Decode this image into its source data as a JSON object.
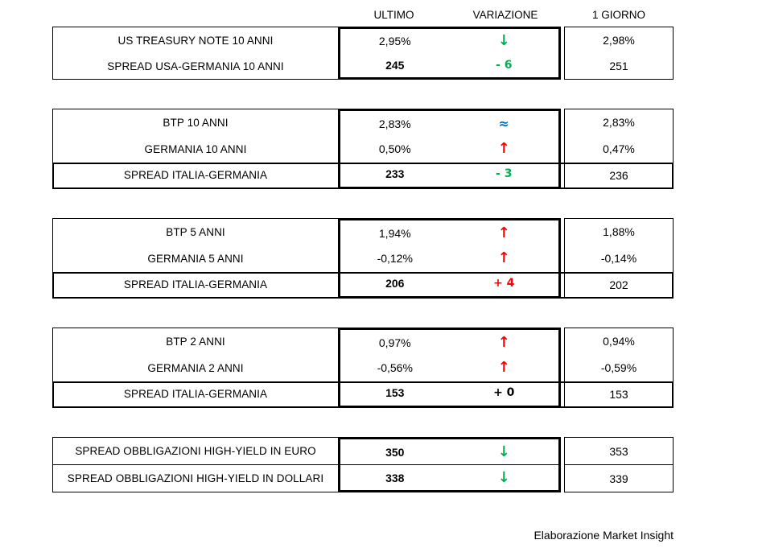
{
  "header": {
    "columns": [
      "ULTIMO",
      "VARIAZIONE",
      "1 GIORNO"
    ]
  },
  "colors": {
    "green": "#00B050",
    "red": "#FF0000",
    "blue": "#0070C0",
    "black": "#000000"
  },
  "tables": [
    {
      "spread_last_row": false,
      "divider_between_rows": false,
      "rows": [
        {
          "label": "US TREASURY NOTE 10 ANNI",
          "ultimo": {
            "text": "2,95%",
            "bold": false
          },
          "variazione": {
            "text": "↓",
            "kind": "arrow",
            "color": "green"
          },
          "giorno": "2,98%"
        },
        {
          "label": "SPREAD USA-GERMANIA 10 ANNI",
          "ultimo": {
            "text": "245",
            "bold": true
          },
          "variazione": {
            "text": "- 6",
            "kind": "delta",
            "color": "green"
          },
          "giorno": "251"
        }
      ]
    },
    {
      "spread_last_row": true,
      "divider_between_rows": false,
      "rows": [
        {
          "label": "BTP 10 ANNI",
          "ultimo": {
            "text": "2,83%",
            "bold": false
          },
          "variazione": {
            "text": "≈",
            "kind": "approx",
            "color": "blue"
          },
          "giorno": "2,83%"
        },
        {
          "label": "GERMANIA 10 ANNI",
          "ultimo": {
            "text": "0,50%",
            "bold": false
          },
          "variazione": {
            "text": "↑",
            "kind": "arrow",
            "color": "red"
          },
          "giorno": "0,47%"
        },
        {
          "label": "SPREAD ITALIA-GERMANIA",
          "ultimo": {
            "text": "233",
            "bold": true
          },
          "variazione": {
            "text": "- 3",
            "kind": "delta",
            "color": "green"
          },
          "giorno": "236"
        }
      ]
    },
    {
      "spread_last_row": true,
      "divider_between_rows": false,
      "rows": [
        {
          "label": "BTP 5 ANNI",
          "ultimo": {
            "text": "1,94%",
            "bold": false
          },
          "variazione": {
            "text": "↑",
            "kind": "arrow",
            "color": "red"
          },
          "giorno": "1,88%"
        },
        {
          "label": "GERMANIA 5 ANNI",
          "ultimo": {
            "text": "-0,12%",
            "bold": false
          },
          "variazione": {
            "text": "↑",
            "kind": "arrow",
            "color": "red"
          },
          "giorno": "-0,14%"
        },
        {
          "label": "SPREAD ITALIA-GERMANIA",
          "ultimo": {
            "text": "206",
            "bold": true
          },
          "variazione": {
            "text": "+ 4",
            "kind": "delta",
            "color": "red"
          },
          "giorno": "202"
        }
      ]
    },
    {
      "spread_last_row": true,
      "divider_between_rows": false,
      "rows": [
        {
          "label": "BTP 2 ANNI",
          "ultimo": {
            "text": "0,97%",
            "bold": false
          },
          "variazione": {
            "text": "↑",
            "kind": "arrow",
            "color": "red"
          },
          "giorno": "0,94%"
        },
        {
          "label": "GERMANIA 2 ANNI",
          "ultimo": {
            "text": "-0,56%",
            "bold": false
          },
          "variazione": {
            "text": "↑",
            "kind": "arrow",
            "color": "red"
          },
          "giorno": "-0,59%"
        },
        {
          "label": "SPREAD ITALIA-GERMANIA",
          "ultimo": {
            "text": "153",
            "bold": true
          },
          "variazione": {
            "text": "+ 0",
            "kind": "delta",
            "color": "black"
          },
          "giorno": "153"
        }
      ]
    },
    {
      "spread_last_row": false,
      "divider_between_rows": true,
      "rows": [
        {
          "label": "SPREAD OBBLIGAZIONI HIGH-YIELD IN EURO",
          "ultimo": {
            "text": "350",
            "bold": true
          },
          "variazione": {
            "text": "↓",
            "kind": "arrow",
            "color": "green"
          },
          "giorno": "353"
        },
        {
          "label": "SPREAD OBBLIGAZIONI HIGH-YIELD IN DOLLARI",
          "ultimo": {
            "text": "338",
            "bold": true
          },
          "variazione": {
            "text": "↓",
            "kind": "arrow",
            "color": "green"
          },
          "giorno": "339"
        }
      ]
    }
  ],
  "footer": {
    "credit": "Elaborazione Market Insight"
  }
}
